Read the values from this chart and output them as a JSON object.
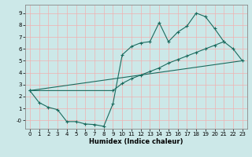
{
  "xlabel": "Humidex (Indice chaleur)",
  "background_color": "#cce8e8",
  "line_color": "#1a6b5e",
  "grid_color": "#f0b0b0",
  "xlim": [
    -0.5,
    23.5
  ],
  "ylim": [
    -0.7,
    9.7
  ],
  "xticks": [
    0,
    1,
    2,
    3,
    4,
    5,
    6,
    7,
    8,
    9,
    10,
    11,
    12,
    13,
    14,
    15,
    16,
    17,
    18,
    19,
    20,
    21,
    22,
    23
  ],
  "yticks": [
    0,
    1,
    2,
    3,
    4,
    5,
    6,
    7,
    8,
    9
  ],
  "line1_x": [
    0,
    1,
    2,
    3,
    4,
    5,
    6,
    7,
    8,
    9,
    10,
    11,
    12,
    13,
    14,
    15,
    16,
    17,
    18,
    19,
    20,
    21
  ],
  "line1_y": [
    2.5,
    1.5,
    1.1,
    0.9,
    -0.1,
    -0.1,
    -0.3,
    -0.35,
    -0.5,
    1.4,
    5.5,
    6.2,
    6.5,
    6.6,
    8.2,
    6.6,
    7.4,
    7.9,
    9.0,
    8.7,
    7.7,
    6.6
  ],
  "line2_x": [
    0,
    23
  ],
  "line2_y": [
    2.5,
    5.0
  ],
  "line3_x": [
    0,
    9,
    10,
    11,
    12,
    13,
    14,
    15,
    16,
    17,
    18,
    19,
    20,
    21,
    22,
    23
  ],
  "line3_y": [
    2.5,
    2.5,
    3.1,
    3.5,
    3.8,
    4.1,
    4.4,
    4.8,
    5.1,
    5.4,
    5.7,
    6.0,
    6.3,
    6.6,
    6.0,
    5.0
  ]
}
